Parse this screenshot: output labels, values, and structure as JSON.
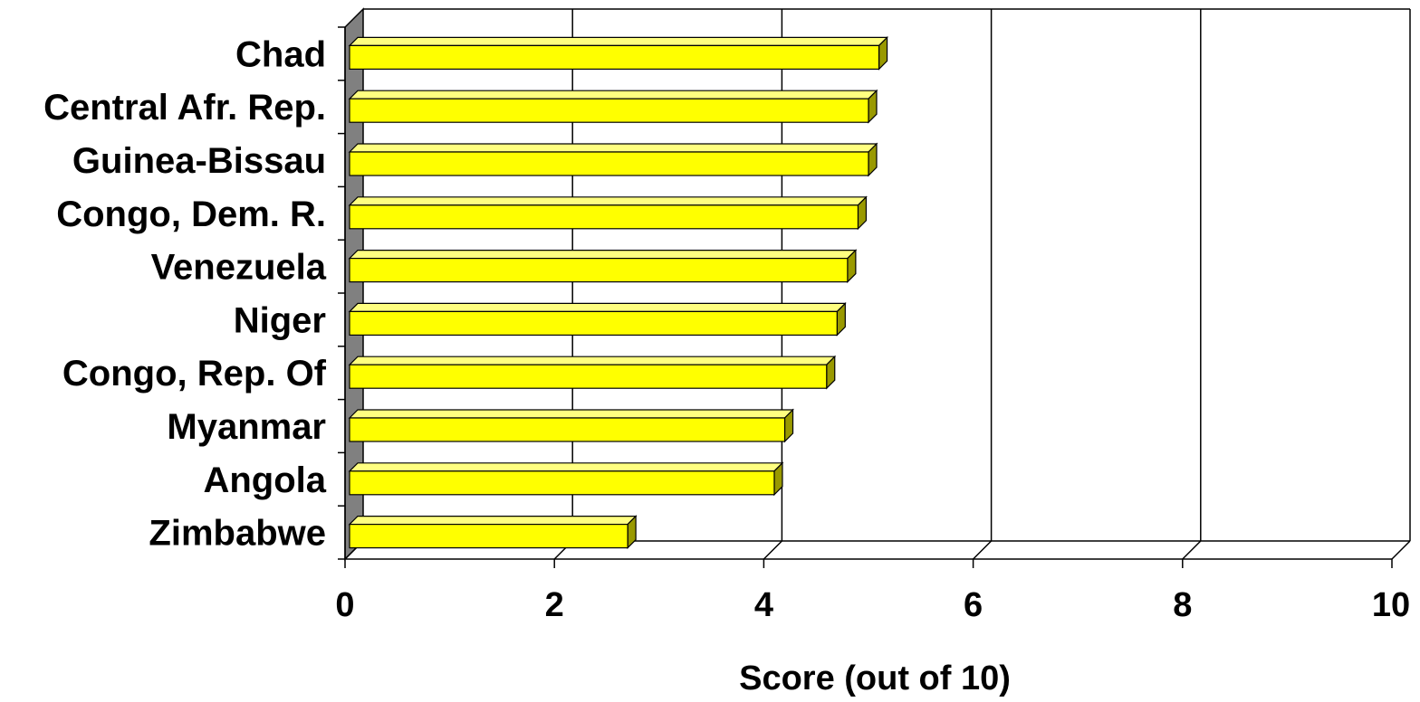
{
  "chart_data": {
    "type": "bar",
    "orientation": "horizontal",
    "style": "3d",
    "categories": [
      "Chad",
      "Central Afr. Rep.",
      "Guinea-Bissau",
      "Congo, Dem. R.",
      "Venezuela",
      "Niger",
      "Congo, Rep. Of",
      "Myanmar",
      "Angola",
      "Zimbabwe"
    ],
    "values": [
      5.1,
      5.0,
      5.0,
      4.9,
      4.8,
      4.7,
      4.6,
      4.2,
      4.1,
      2.7
    ],
    "xlabel": "Score (out of 10)",
    "ylabel": "",
    "xlim": [
      0,
      10
    ],
    "xticks": [
      "0",
      "2",
      "4",
      "6",
      "8",
      "10"
    ],
    "grid": true,
    "legend": "none",
    "colors": {
      "bar_face": "#ffff00",
      "bar_top": "#ffff80",
      "bar_side": "#999900",
      "wall": "#808080",
      "grid": "#000000"
    }
  }
}
